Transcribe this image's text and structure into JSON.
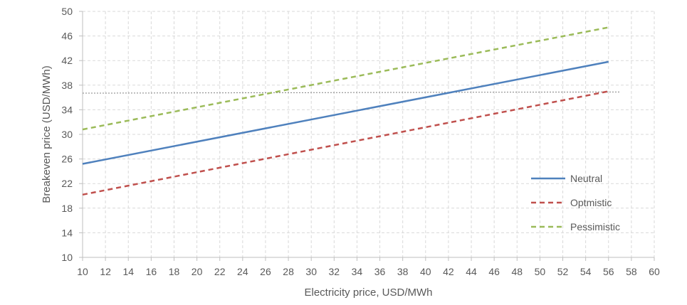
{
  "chart_data": {
    "type": "line",
    "title": "",
    "xlabel": "Electricity price, USD/MWh",
    "ylabel": "Breakeven price (USD/MWh)",
    "xlim": [
      10,
      60
    ],
    "ylim": [
      10,
      50
    ],
    "xticks": [
      10,
      12,
      14,
      16,
      18,
      20,
      22,
      24,
      26,
      28,
      30,
      32,
      34,
      36,
      38,
      40,
      42,
      44,
      46,
      48,
      50,
      52,
      54,
      56,
      58,
      60
    ],
    "yticks": [
      10,
      14,
      18,
      22,
      26,
      30,
      34,
      38,
      42,
      46,
      50
    ],
    "grid": true,
    "legend_position": "right",
    "series": [
      {
        "name": "Neutral",
        "x": [
          10,
          56
        ],
        "y": [
          25.2,
          41.8
        ],
        "color": "#4f81bd",
        "dash": "solid"
      },
      {
        "name": "Optmistic",
        "x": [
          10,
          56
        ],
        "y": [
          20.2,
          37.0
        ],
        "color": "#c0504d",
        "dash": "dashed"
      },
      {
        "name": "Pessimistic",
        "x": [
          10,
          56
        ],
        "y": [
          30.8,
          47.4
        ],
        "color": "#9bbb59",
        "dash": "dashed"
      }
    ],
    "reference_lines": [
      {
        "x": [
          10,
          57
        ],
        "y": [
          36.7,
          36.9
        ],
        "color": "#808080",
        "dash": "dotted"
      }
    ]
  }
}
